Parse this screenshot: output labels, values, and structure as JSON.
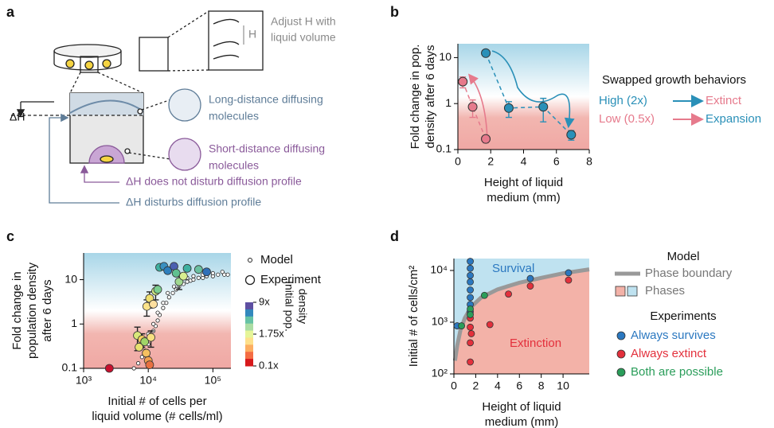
{
  "panel_labels": [
    "a",
    "b",
    "c",
    "d"
  ],
  "diagram": {
    "adjust_h": [
      "Adjust H with",
      "liquid volume"
    ],
    "h": "H",
    "delta_h": "ΔH",
    "long_distance": [
      "Long-distance diffusing",
      "molecules"
    ],
    "short_distance": [
      "Short-distance diffusing",
      "molecules"
    ],
    "no_disturb": "ΔH does not disturb diffusion profile",
    "disturb": "ΔH disturbs diffusion profile"
  },
  "chart_data": [
    {
      "type": "scatter",
      "ylabel": [
        "Fold change in pop.",
        "density after 6 days"
      ],
      "xlabel": [
        "Height of liquid",
        "medium (mm)"
      ],
      "xlim": [
        0,
        8
      ],
      "xticks": [
        0,
        2,
        4,
        6,
        8
      ],
      "yscale": "log",
      "ylim": [
        0.1,
        20
      ],
      "yticks": [
        0.1,
        1,
        10
      ],
      "legend_title": "Swapped growth behaviors",
      "series": [
        {
          "name": "High (2x)",
          "outcome": "Extinct",
          "color": "#2a90b8",
          "outcome_color": "#e67a8c",
          "x": [
            1.7,
            3.1,
            5.2,
            6.9
          ],
          "values": [
            12.5,
            0.8,
            0.85,
            0.21
          ],
          "errors": [
            0,
            0.3,
            0.45,
            0.05
          ]
        },
        {
          "name": "Low (0.5x)",
          "outcome": "Expansion",
          "color": "#e67a8c",
          "outcome_color": "#2a90b8",
          "x": [
            0.3,
            0.9,
            1.7
          ],
          "values": [
            3,
            0.85,
            0.17
          ],
          "errors": [
            0.8,
            0.35,
            0.03
          ]
        }
      ]
    },
    {
      "type": "scatter",
      "ylabel": [
        "Fold change in",
        "population density",
        "after 6 days"
      ],
      "xlabel": [
        "Initial # of cells per",
        "liquid volume (# cells/ml)"
      ],
      "xscale": "log",
      "xlim": [
        1000,
        190000
      ],
      "xticks": [
        {
          "value": 1000,
          "label": "10³"
        },
        {
          "value": 10000,
          "label": "10⁴"
        },
        {
          "value": 100000,
          "label": "10⁵"
        }
      ],
      "yscale": "log",
      "ylim": [
        0.1,
        40
      ],
      "yticks": [
        0.1,
        1,
        10
      ],
      "series": [
        {
          "name": "Model",
          "x": [
            6000,
            7000,
            8000,
            9000,
            10000,
            11000,
            12000,
            13000,
            14000,
            15000,
            17000,
            19000,
            21000,
            24000,
            27000,
            30000,
            35000,
            40000,
            45000,
            50000,
            60000,
            70000,
            80000,
            100000,
            120000,
            150000,
            170000,
            8000,
            10000,
            12000,
            14000,
            17000,
            20000,
            25000,
            30000,
            40000,
            50000,
            70000,
            100000,
            140000
          ],
          "values": [
            0.1,
            0.13,
            0.18,
            0.25,
            0.35,
            0.5,
            0.7,
            0.9,
            1.2,
            1.6,
            2.3,
            3,
            4,
            5,
            6,
            7,
            8,
            9,
            9.5,
            10,
            11,
            11,
            12,
            12,
            13,
            13,
            13,
            0.3,
            0.6,
            1,
            1.8,
            3,
            5,
            7,
            9,
            11,
            12,
            13,
            14,
            15
          ]
        },
        {
          "name": "Experiment",
          "x": [
            2500,
            6800,
            7200,
            8000,
            8800,
            9300,
            10000,
            10500,
            11000,
            9500,
            10500,
            12000,
            13000,
            14000,
            15000,
            17500,
            20000,
            25000,
            27000,
            30000,
            35000,
            40000,
            60000,
            80000
          ],
          "values": [
            0.1,
            0.55,
            0.3,
            0.45,
            0.4,
            0.22,
            0.15,
            0.12,
            0.5,
            2.5,
            3.8,
            2.8,
            5.5,
            6,
            19,
            20,
            16,
            20,
            14,
            9,
            12,
            18,
            17,
            15
          ],
          "errors": [
            0,
            0.3,
            0,
            0.15,
            0,
            0,
            0,
            0,
            0.2,
            1,
            1.5,
            0,
            2,
            0,
            0,
            0,
            0,
            0,
            0,
            3,
            0,
            0,
            0,
            0
          ],
          "colors": [
            "#c8102e",
            "#d9e87a",
            "#e8e070",
            "#f4d060",
            "#a0d468",
            "#f5c060",
            "#f0a050",
            "#e87040",
            "#f8e080",
            "#fbe38a",
            "#f0e070",
            "#fde0a0",
            "#cce880",
            "#7ccf90",
            "#3fb0a0",
            "#3a90c0",
            "#2d7fbd",
            "#4a60b0",
            "#60c090",
            "#a0d890",
            "#d8ee90",
            "#3fb0a0",
            "#6ac0a0",
            "#3070b8"
          ]
        }
      ],
      "colorbar": {
        "label": [
          "Initial pop.",
          "density"
        ],
        "ticks": [
          "9x",
          "1.75x",
          "0.1x"
        ],
        "colors": [
          "#5e4fa2",
          "#3288bd",
          "#66c2a5",
          "#abdda4",
          "#e6f598",
          "#fee08b",
          "#fdae61",
          "#f46d43",
          "#d7191c"
        ]
      }
    },
    {
      "type": "scatter",
      "ylabel": "Initial # of cells/cm²",
      "xlabel": [
        "Height of liquid",
        "medium (mm)"
      ],
      "xlim": [
        0,
        12.4
      ],
      "xticks": [
        0,
        2,
        4,
        6,
        8,
        10
      ],
      "yscale": "log",
      "ylim": [
        100,
        17000
      ],
      "yticks": [
        {
          "value": 100,
          "label": "10²"
        },
        {
          "value": 1000,
          "label": "10³"
        },
        {
          "value": 10000,
          "label": "10⁴"
        }
      ],
      "regions": [
        "Survival",
        "Extinction"
      ],
      "region_colors": [
        "#bfe2f0",
        "#f3b2a8"
      ],
      "legend_titles": [
        "Model",
        "Experiments"
      ],
      "phases_label": "Phases",
      "boundary": {
        "name": "Phase boundary",
        "color": "#999999",
        "x": [
          0.1,
          0.3,
          0.6,
          1,
          1.6,
          2.5,
          4,
          6,
          8,
          10,
          12.4
        ],
        "values": [
          180,
          350,
          700,
          1200,
          2000,
          3000,
          4300,
          5800,
          7200,
          8800,
          10500
        ]
      },
      "series": [
        {
          "name": "Always survives",
          "color": "#2b78c0",
          "x": [
            1.5,
            1.5,
            1.5,
            1.5,
            1.5,
            1.5,
            1.5,
            1.5,
            0.3,
            7,
            10.5
          ],
          "values": [
            15000,
            11000,
            8000,
            6000,
            4200,
            3000,
            2200,
            1600,
            850,
            7000,
            9000
          ]
        },
        {
          "name": "Always extinct",
          "color": "#e3303c",
          "x": [
            1.5,
            1.5,
            1.5,
            1.5,
            3.3,
            5,
            7,
            10.5,
            1.6
          ],
          "values": [
            1200,
            800,
            400,
            170,
            900,
            3500,
            5000,
            6500,
            600
          ]
        },
        {
          "name": "Both are possible",
          "color": "#2a9d5a",
          "x": [
            0.7,
            1.5,
            2.8,
            1.5
          ],
          "values": [
            850,
            1800,
            3300,
            1400
          ]
        }
      ]
    }
  ]
}
